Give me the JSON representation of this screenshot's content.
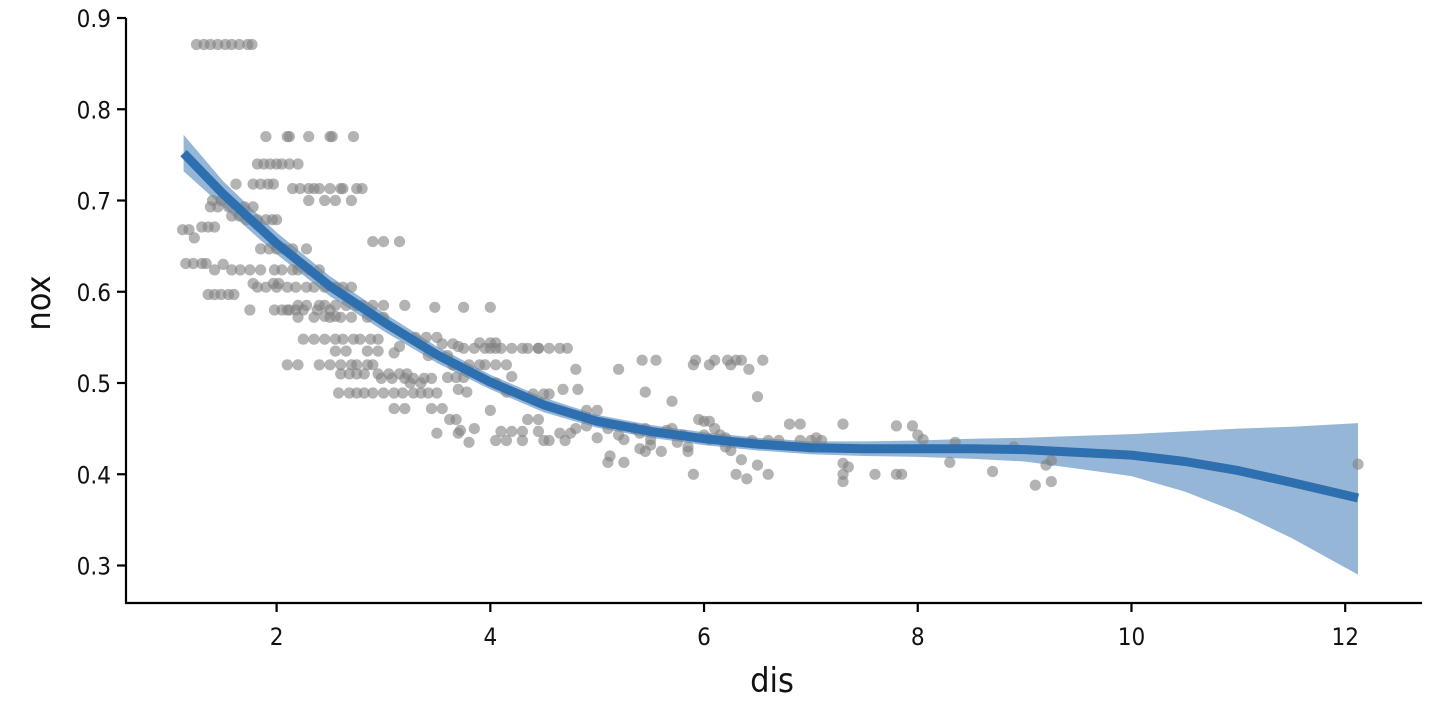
{
  "chart_data": {
    "type": "scatter",
    "xlabel": "dis",
    "ylabel": "nox",
    "xlim": [
      0.6,
      12.7
    ],
    "ylim": [
      0.26,
      0.9
    ],
    "x_ticks": [
      2,
      4,
      6,
      8,
      10,
      12
    ],
    "x_tick_labels": [
      "2",
      "4",
      "6",
      "8",
      "10",
      "12"
    ],
    "y_ticks": [
      0.3,
      0.4,
      0.5,
      0.6,
      0.7,
      0.8,
      0.9
    ],
    "y_tick_labels": [
      "0.3",
      "0.4",
      "0.5",
      "0.6",
      "0.7",
      "0.8",
      "0.9"
    ],
    "grid": false,
    "legend": "none",
    "colors": {
      "points": "#808080",
      "smooth_line": "#2e6fb0",
      "confidence_band": "#94b5d6"
    },
    "points": [
      [
        1.25,
        0.871
      ],
      [
        1.32,
        0.871
      ],
      [
        1.38,
        0.871
      ],
      [
        1.45,
        0.871
      ],
      [
        1.52,
        0.871
      ],
      [
        1.58,
        0.871
      ],
      [
        1.65,
        0.871
      ],
      [
        1.73,
        0.871
      ],
      [
        1.77,
        0.871
      ],
      [
        1.12,
        0.668
      ],
      [
        1.18,
        0.668
      ],
      [
        1.23,
        0.659
      ],
      [
        1.3,
        0.671
      ],
      [
        1.36,
        0.671
      ],
      [
        1.42,
        0.671
      ],
      [
        1.15,
        0.631
      ],
      [
        1.22,
        0.631
      ],
      [
        1.3,
        0.631
      ],
      [
        1.34,
        0.631
      ],
      [
        1.36,
        0.597
      ],
      [
        1.42,
        0.597
      ],
      [
        1.48,
        0.597
      ],
      [
        1.55,
        0.597
      ],
      [
        1.6,
        0.597
      ],
      [
        1.42,
        0.624
      ],
      [
        1.5,
        0.63
      ],
      [
        1.58,
        0.624
      ],
      [
        1.66,
        0.624
      ],
      [
        1.75,
        0.624
      ],
      [
        1.85,
        0.624
      ],
      [
        1.38,
        0.693
      ],
      [
        1.45,
        0.693
      ],
      [
        1.55,
        0.693
      ],
      [
        1.62,
        0.718
      ],
      [
        1.7,
        0.693
      ],
      [
        1.78,
        0.693
      ],
      [
        1.72,
        0.679
      ],
      [
        1.82,
        0.679
      ],
      [
        1.9,
        0.679
      ],
      [
        1.96,
        0.679
      ],
      [
        2.0,
        0.679
      ],
      [
        1.4,
        0.7
      ],
      [
        1.48,
        0.7
      ],
      [
        1.58,
        0.683
      ],
      [
        1.65,
        0.683
      ],
      [
        1.78,
        0.718
      ],
      [
        1.85,
        0.718
      ],
      [
        1.92,
        0.718
      ],
      [
        1.97,
        0.718
      ],
      [
        1.82,
        0.74
      ],
      [
        1.88,
        0.74
      ],
      [
        1.94,
        0.74
      ],
      [
        2.0,
        0.74
      ],
      [
        2.05,
        0.74
      ],
      [
        2.12,
        0.74
      ],
      [
        2.2,
        0.74
      ],
      [
        1.9,
        0.77
      ],
      [
        2.1,
        0.77
      ],
      [
        2.12,
        0.77
      ],
      [
        2.3,
        0.77
      ],
      [
        2.5,
        0.77
      ],
      [
        2.52,
        0.77
      ],
      [
        2.72,
        0.77
      ],
      [
        2.15,
        0.713
      ],
      [
        2.22,
        0.713
      ],
      [
        2.3,
        0.713
      ],
      [
        2.35,
        0.713
      ],
      [
        2.4,
        0.713
      ],
      [
        2.5,
        0.713
      ],
      [
        2.6,
        0.713
      ],
      [
        2.62,
        0.713
      ],
      [
        2.75,
        0.713
      ],
      [
        2.8,
        0.713
      ],
      [
        2.7,
        0.7
      ],
      [
        2.55,
        0.7
      ],
      [
        2.45,
        0.7
      ],
      [
        2.3,
        0.7
      ],
      [
        1.78,
        0.609
      ],
      [
        1.82,
        0.605
      ],
      [
        1.9,
        0.605
      ],
      [
        1.97,
        0.609
      ],
      [
        2.02,
        0.609
      ],
      [
        1.75,
        0.58
      ],
      [
        1.98,
        0.58
      ],
      [
        2.05,
        0.58
      ],
      [
        2.12,
        0.58
      ],
      [
        2.25,
        0.58
      ],
      [
        1.85,
        0.647
      ],
      [
        1.93,
        0.647
      ],
      [
        2.0,
        0.647
      ],
      [
        2.07,
        0.647
      ],
      [
        2.15,
        0.647
      ],
      [
        2.28,
        0.647
      ],
      [
        1.98,
        0.624
      ],
      [
        2.05,
        0.624
      ],
      [
        2.15,
        0.624
      ],
      [
        2.2,
        0.624
      ],
      [
        2.3,
        0.624
      ],
      [
        2.4,
        0.624
      ],
      [
        2.0,
        0.605
      ],
      [
        2.1,
        0.605
      ],
      [
        2.18,
        0.605
      ],
      [
        2.28,
        0.605
      ],
      [
        2.35,
        0.605
      ],
      [
        2.45,
        0.605
      ],
      [
        2.55,
        0.605
      ],
      [
        2.62,
        0.605
      ],
      [
        2.7,
        0.605
      ],
      [
        2.2,
        0.585
      ],
      [
        2.28,
        0.585
      ],
      [
        2.4,
        0.585
      ],
      [
        2.45,
        0.585
      ],
      [
        2.55,
        0.585
      ],
      [
        2.65,
        0.585
      ],
      [
        2.75,
        0.585
      ],
      [
        2.8,
        0.585
      ],
      [
        2.9,
        0.585
      ],
      [
        3.0,
        0.585
      ],
      [
        3.2,
        0.585
      ],
      [
        2.1,
        0.58
      ],
      [
        2.18,
        0.58
      ],
      [
        2.38,
        0.58
      ],
      [
        2.5,
        0.58
      ],
      [
        2.2,
        0.572
      ],
      [
        2.35,
        0.572
      ],
      [
        2.5,
        0.572
      ],
      [
        2.6,
        0.572
      ],
      [
        2.7,
        0.572
      ],
      [
        2.85,
        0.572
      ],
      [
        3.0,
        0.572
      ],
      [
        2.45,
        0.573
      ],
      [
        2.55,
        0.573
      ],
      [
        2.25,
        0.548
      ],
      [
        2.35,
        0.548
      ],
      [
        2.45,
        0.548
      ],
      [
        2.55,
        0.548
      ],
      [
        2.62,
        0.548
      ],
      [
        2.72,
        0.548
      ],
      [
        2.78,
        0.548
      ],
      [
        2.88,
        0.548
      ],
      [
        2.95,
        0.548
      ],
      [
        2.55,
        0.535
      ],
      [
        2.65,
        0.535
      ],
      [
        2.85,
        0.535
      ],
      [
        2.95,
        0.535
      ],
      [
        2.1,
        0.52
      ],
      [
        2.2,
        0.52
      ],
      [
        2.4,
        0.52
      ],
      [
        2.5,
        0.52
      ],
      [
        2.6,
        0.52
      ],
      [
        2.7,
        0.52
      ],
      [
        2.75,
        0.52
      ],
      [
        2.85,
        0.52
      ],
      [
        2.9,
        0.52
      ],
      [
        2.6,
        0.51
      ],
      [
        2.68,
        0.51
      ],
      [
        2.75,
        0.51
      ],
      [
        2.82,
        0.51
      ],
      [
        2.95,
        0.51
      ],
      [
        3.05,
        0.51
      ],
      [
        3.15,
        0.51
      ],
      [
        3.22,
        0.51
      ],
      [
        2.58,
        0.489
      ],
      [
        2.68,
        0.489
      ],
      [
        2.75,
        0.489
      ],
      [
        2.82,
        0.489
      ],
      [
        2.9,
        0.489
      ],
      [
        3.0,
        0.489
      ],
      [
        3.1,
        0.489
      ],
      [
        3.18,
        0.489
      ],
      [
        3.28,
        0.489
      ],
      [
        3.35,
        0.489
      ],
      [
        3.42,
        0.489
      ],
      [
        3.5,
        0.489
      ],
      [
        2.98,
        0.505
      ],
      [
        3.08,
        0.505
      ],
      [
        3.2,
        0.505
      ],
      [
        3.28,
        0.505
      ],
      [
        3.38,
        0.505
      ],
      [
        3.45,
        0.505
      ],
      [
        3.1,
        0.472
      ],
      [
        3.2,
        0.472
      ],
      [
        3.45,
        0.472
      ],
      [
        3.55,
        0.472
      ],
      [
        3.25,
        0.5
      ],
      [
        3.35,
        0.5
      ],
      [
        2.9,
        0.655
      ],
      [
        3.0,
        0.655
      ],
      [
        3.15,
        0.655
      ],
      [
        3.1,
        0.533
      ],
      [
        3.15,
        0.54
      ],
      [
        3.3,
        0.55
      ],
      [
        3.4,
        0.55
      ],
      [
        3.5,
        0.55
      ],
      [
        3.42,
        0.53
      ],
      [
        3.6,
        0.53
      ],
      [
        3.7,
        0.54
      ],
      [
        3.55,
        0.543
      ],
      [
        3.65,
        0.543
      ],
      [
        3.48,
        0.583
      ],
      [
        3.75,
        0.583
      ],
      [
        4.0,
        0.583
      ],
      [
        3.5,
        0.445
      ],
      [
        3.7,
        0.445
      ],
      [
        3.72,
        0.448
      ],
      [
        3.8,
        0.435
      ],
      [
        3.62,
        0.46
      ],
      [
        3.68,
        0.46
      ],
      [
        3.85,
        0.45
      ],
      [
        3.6,
        0.506
      ],
      [
        3.68,
        0.506
      ],
      [
        3.75,
        0.506
      ],
      [
        3.65,
        0.52
      ],
      [
        3.8,
        0.52
      ],
      [
        3.9,
        0.52
      ],
      [
        3.7,
        0.493
      ],
      [
        3.78,
        0.49
      ],
      [
        3.75,
        0.538
      ],
      [
        3.85,
        0.538
      ],
      [
        3.95,
        0.538
      ],
      [
        4.0,
        0.538
      ],
      [
        4.05,
        0.538
      ],
      [
        4.1,
        0.538
      ],
      [
        4.2,
        0.538
      ],
      [
        4.3,
        0.538
      ],
      [
        4.35,
        0.538
      ],
      [
        4.45,
        0.538
      ],
      [
        4.55,
        0.538
      ],
      [
        4.65,
        0.538
      ],
      [
        4.72,
        0.538
      ],
      [
        4.45,
        0.538
      ],
      [
        3.9,
        0.544
      ],
      [
        4.0,
        0.544
      ],
      [
        4.05,
        0.544
      ],
      [
        3.95,
        0.52
      ],
      [
        4.05,
        0.52
      ],
      [
        4.15,
        0.52
      ],
      [
        4.2,
        0.507
      ],
      [
        4.05,
        0.5
      ],
      [
        4.15,
        0.49
      ],
      [
        4.0,
        0.47
      ],
      [
        4.1,
        0.447
      ],
      [
        4.2,
        0.447
      ],
      [
        4.3,
        0.447
      ],
      [
        4.05,
        0.437
      ],
      [
        4.15,
        0.437
      ],
      [
        4.3,
        0.437
      ],
      [
        4.35,
        0.46
      ],
      [
        4.45,
        0.447
      ],
      [
        4.5,
        0.437
      ],
      [
        4.55,
        0.437
      ],
      [
        4.45,
        0.46
      ],
      [
        4.7,
        0.437
      ],
      [
        4.4,
        0.488
      ],
      [
        4.5,
        0.488
      ],
      [
        4.55,
        0.488
      ],
      [
        4.68,
        0.493
      ],
      [
        4.82,
        0.493
      ],
      [
        4.8,
        0.515
      ],
      [
        4.9,
        0.47
      ],
      [
        5.0,
        0.47
      ],
      [
        4.65,
        0.445
      ],
      [
        4.75,
        0.445
      ],
      [
        4.8,
        0.45
      ],
      [
        4.9,
        0.453
      ],
      [
        5.0,
        0.44
      ],
      [
        5.1,
        0.45
      ],
      [
        5.2,
        0.443
      ],
      [
        5.25,
        0.438
      ],
      [
        5.35,
        0.45
      ],
      [
        5.4,
        0.445
      ],
      [
        5.45,
        0.45
      ],
      [
        5.5,
        0.438
      ],
      [
        5.1,
        0.413
      ],
      [
        5.12,
        0.42
      ],
      [
        5.25,
        0.413
      ],
      [
        5.4,
        0.428
      ],
      [
        5.45,
        0.425
      ],
      [
        5.5,
        0.432
      ],
      [
        5.6,
        0.425
      ],
      [
        5.2,
        0.515
      ],
      [
        5.45,
        0.49
      ],
      [
        5.42,
        0.525
      ],
      [
        5.55,
        0.525
      ],
      [
        5.7,
        0.48
      ],
      [
        5.75,
        0.435
      ],
      [
        5.85,
        0.43
      ],
      [
        5.65,
        0.448
      ],
      [
        5.7,
        0.45
      ],
      [
        5.8,
        0.443
      ],
      [
        5.95,
        0.46
      ],
      [
        6.0,
        0.443
      ],
      [
        6.05,
        0.438
      ],
      [
        6.1,
        0.45
      ],
      [
        6.15,
        0.443
      ],
      [
        6.2,
        0.44
      ],
      [
        5.9,
        0.52
      ],
      [
        5.92,
        0.525
      ],
      [
        6.05,
        0.52
      ],
      [
        6.1,
        0.525
      ],
      [
        6.22,
        0.525
      ],
      [
        6.3,
        0.525
      ],
      [
        6.25,
        0.52
      ],
      [
        6.35,
        0.525
      ],
      [
        6.42,
        0.515
      ],
      [
        6.55,
        0.525
      ],
      [
        6.0,
        0.458
      ],
      [
        6.05,
        0.458
      ],
      [
        5.85,
        0.425
      ],
      [
        5.9,
        0.4
      ],
      [
        6.2,
        0.43
      ],
      [
        6.25,
        0.426
      ],
      [
        6.35,
        0.416
      ],
      [
        6.3,
        0.4
      ],
      [
        6.4,
        0.395
      ],
      [
        6.5,
        0.41
      ],
      [
        6.5,
        0.485
      ],
      [
        6.6,
        0.4
      ],
      [
        6.45,
        0.437
      ],
      [
        6.6,
        0.437
      ],
      [
        6.7,
        0.437
      ],
      [
        6.9,
        0.437
      ],
      [
        7.0,
        0.437
      ],
      [
        7.1,
        0.437
      ],
      [
        6.8,
        0.455
      ],
      [
        6.9,
        0.455
      ],
      [
        7.3,
        0.455
      ],
      [
        7.05,
        0.44
      ],
      [
        7.3,
        0.412
      ],
      [
        7.35,
        0.408
      ],
      [
        7.3,
        0.4
      ],
      [
        7.3,
        0.392
      ],
      [
        7.6,
        0.4
      ],
      [
        7.8,
        0.4
      ],
      [
        7.85,
        0.4
      ],
      [
        7.8,
        0.453
      ],
      [
        7.95,
        0.453
      ],
      [
        8.0,
        0.443
      ],
      [
        8.05,
        0.438
      ],
      [
        8.3,
        0.413
      ],
      [
        8.35,
        0.435
      ],
      [
        8.7,
        0.403
      ],
      [
        8.9,
        0.43
      ],
      [
        9.1,
        0.388
      ],
      [
        9.2,
        0.41
      ],
      [
        9.25,
        0.415
      ],
      [
        9.25,
        0.392
      ],
      [
        12.12,
        0.411
      ]
    ],
    "smooth_line": [
      [
        1.13,
        0.752
      ],
      [
        1.5,
        0.707
      ],
      [
        2.0,
        0.653
      ],
      [
        2.5,
        0.606
      ],
      [
        3.0,
        0.567
      ],
      [
        3.5,
        0.531
      ],
      [
        4.0,
        0.501
      ],
      [
        4.5,
        0.476
      ],
      [
        5.0,
        0.458
      ],
      [
        5.5,
        0.447
      ],
      [
        6.0,
        0.439
      ],
      [
        6.5,
        0.433
      ],
      [
        7.0,
        0.429
      ],
      [
        7.5,
        0.428
      ],
      [
        8.0,
        0.428
      ],
      [
        8.5,
        0.428
      ],
      [
        9.0,
        0.427
      ],
      [
        9.5,
        0.424
      ],
      [
        10.0,
        0.421
      ],
      [
        10.5,
        0.414
      ],
      [
        11.0,
        0.404
      ],
      [
        11.5,
        0.391
      ],
      [
        12.12,
        0.374
      ]
    ],
    "confidence_upper": [
      [
        1.13,
        0.772
      ],
      [
        1.5,
        0.721
      ],
      [
        2.0,
        0.665
      ],
      [
        2.5,
        0.617
      ],
      [
        3.0,
        0.577
      ],
      [
        3.5,
        0.54
      ],
      [
        4.0,
        0.509
      ],
      [
        4.5,
        0.484
      ],
      [
        5.0,
        0.465
      ],
      [
        5.5,
        0.454
      ],
      [
        6.0,
        0.446
      ],
      [
        6.5,
        0.44
      ],
      [
        7.0,
        0.436
      ],
      [
        7.5,
        0.436
      ],
      [
        8.0,
        0.437
      ],
      [
        8.5,
        0.439
      ],
      [
        9.0,
        0.44
      ],
      [
        9.5,
        0.442
      ],
      [
        10.0,
        0.444
      ],
      [
        10.5,
        0.447
      ],
      [
        11.0,
        0.45
      ],
      [
        11.5,
        0.452
      ],
      [
        12.12,
        0.456
      ]
    ],
    "confidence_lower": [
      [
        1.13,
        0.732
      ],
      [
        1.5,
        0.693
      ],
      [
        2.0,
        0.641
      ],
      [
        2.5,
        0.595
      ],
      [
        3.0,
        0.557
      ],
      [
        3.5,
        0.522
      ],
      [
        4.0,
        0.493
      ],
      [
        4.5,
        0.468
      ],
      [
        5.0,
        0.451
      ],
      [
        5.5,
        0.44
      ],
      [
        6.0,
        0.432
      ],
      [
        6.5,
        0.426
      ],
      [
        7.0,
        0.422
      ],
      [
        7.5,
        0.42
      ],
      [
        8.0,
        0.419
      ],
      [
        8.5,
        0.417
      ],
      [
        9.0,
        0.414
      ],
      [
        9.5,
        0.406
      ],
      [
        10.0,
        0.398
      ],
      [
        10.5,
        0.381
      ],
      [
        11.0,
        0.358
      ],
      [
        11.5,
        0.33
      ],
      [
        12.12,
        0.29
      ]
    ]
  }
}
